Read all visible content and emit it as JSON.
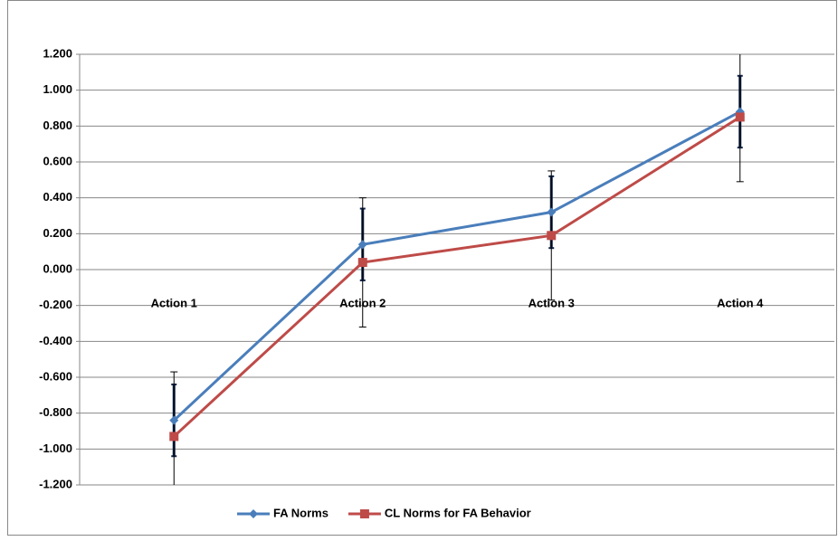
{
  "chart_data": {
    "type": "line",
    "categories": [
      "Action 1",
      "Action 2",
      "Action 3",
      "Action 4"
    ],
    "series": [
      {
        "name": "FA Norms",
        "color": "#4a7ebb",
        "marker": "diamond",
        "values": [
          -0.84,
          0.14,
          0.32,
          0.88
        ],
        "error": [
          0.2,
          0.2,
          0.2,
          0.2
        ],
        "error_color": "#0f2247"
      },
      {
        "name": "CL Norms for FA Behavior",
        "color": "#be4b48",
        "marker": "square",
        "values": [
          -0.93,
          0.04,
          0.19,
          0.85
        ],
        "error": [
          0.36,
          0.36,
          0.36,
          0.36
        ],
        "error_color": "#000000"
      }
    ],
    "ylim": [
      -1.2,
      1.2
    ],
    "yticks": [
      {
        "value": -1.2,
        "label": "-1.200"
      },
      {
        "value": -1.0,
        "label": "-1.000"
      },
      {
        "value": -0.8,
        "label": "-0.800"
      },
      {
        "value": -0.6,
        "label": "-0.600"
      },
      {
        "value": -0.4,
        "label": "-0.400"
      },
      {
        "value": -0.2,
        "label": "-0.200"
      },
      {
        "value": 0,
        "label": "0.000"
      },
      {
        "value": 0.2,
        "label": "0.200"
      },
      {
        "value": 0.4,
        "label": "0.400"
      },
      {
        "value": 0.6,
        "label": "0.600"
      },
      {
        "value": 0.8,
        "label": "0.800"
      },
      {
        "value": 1.0,
        "label": "1.000"
      },
      {
        "value": 1.2,
        "label": "1.200"
      }
    ],
    "grid": true,
    "legend": "bottom"
  }
}
